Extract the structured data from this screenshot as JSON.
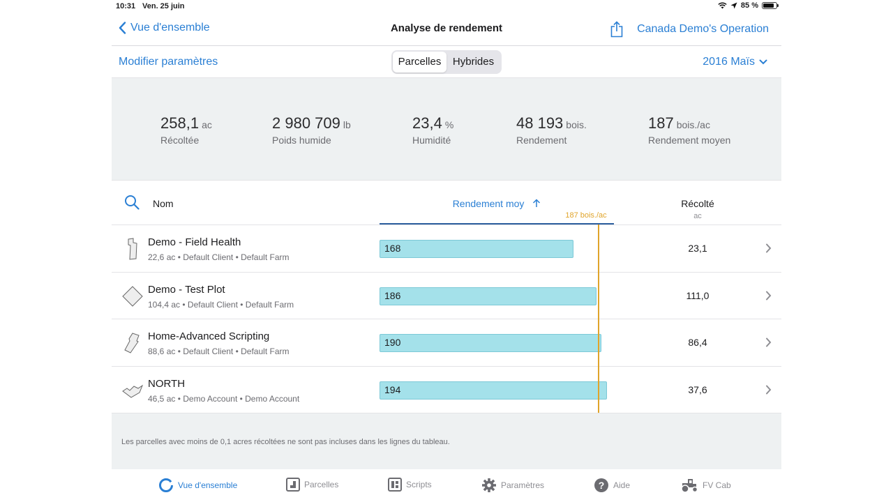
{
  "status_bar": {
    "time": "10:31",
    "date": "Ven. 25 juin",
    "battery": "85 %",
    "battery_level": 0.85
  },
  "nav": {
    "back_label": "Vue d'ensemble",
    "title": "Analyse de rendement",
    "share_icon": "share-icon",
    "operation": "Canada Demo's Operation"
  },
  "toolbar": {
    "modify_label": "Modifier paramètres",
    "segments": [
      "Parcelles",
      "Hybrides"
    ],
    "active_segment": "Parcelles",
    "season": "2016 Maïs"
  },
  "summary": [
    {
      "value": "258,1",
      "unit": "ac",
      "label": "Récoltée"
    },
    {
      "value": "2 980 709",
      "unit": "lb",
      "label": "Poids humide"
    },
    {
      "value": "23,4",
      "unit": "%",
      "label": "Humidité"
    },
    {
      "value": "48 193",
      "unit": "bois.",
      "label": "Rendement"
    },
    {
      "value": "187",
      "unit": "bois./ac",
      "label": "Rendement moyen"
    }
  ],
  "table": {
    "col_name": "Nom",
    "col_yield": "Rendement moy",
    "avg_label": "187 bois./ac",
    "avg_value": 187,
    "col_harvested": "Récolté",
    "col_harvested_unit": "ac",
    "rows": [
      {
        "name": "Demo - Field Health",
        "meta": "22,6 ac • Default Client • Default Farm",
        "yield": "168",
        "yield_value": 168,
        "harvested": "23,1"
      },
      {
        "name": "Demo - Test Plot",
        "meta": "104,4 ac • Default Client • Default Farm",
        "yield": "186",
        "yield_value": 186,
        "harvested": "111,0"
      },
      {
        "name": "Home-Advanced Scripting",
        "meta": "88,6 ac • Default Client • Default Farm",
        "yield": "190",
        "yield_value": 190,
        "harvested": "86,4"
      },
      {
        "name": "NORTH",
        "meta": "46,5 ac • Demo Account • Demo Account",
        "yield": "194",
        "yield_value": 194,
        "harvested": "37,6"
      }
    ]
  },
  "footnote": "Les parcelles avec moins de 0,1 acres récoltées ne sont pas incluses dans les lignes du tableau.",
  "tabs": [
    {
      "label": "Vue d'ensemble",
      "icon": "overview-ring-icon",
      "active": true
    },
    {
      "label": "Parcelles",
      "icon": "field-icon",
      "active": false
    },
    {
      "label": "Scripts",
      "icon": "scripts-icon",
      "active": false
    },
    {
      "label": "Paramètres",
      "icon": "gear-icon",
      "active": false
    },
    {
      "label": "Aide",
      "icon": "help-icon",
      "active": false
    },
    {
      "label": "FV Cab",
      "icon": "tractor-icon",
      "active": false
    }
  ],
  "colors": {
    "accent": "#2a7fd4",
    "bar": "#a4e1ea",
    "average": "#e0a42a",
    "panel": "#eef1f2"
  }
}
